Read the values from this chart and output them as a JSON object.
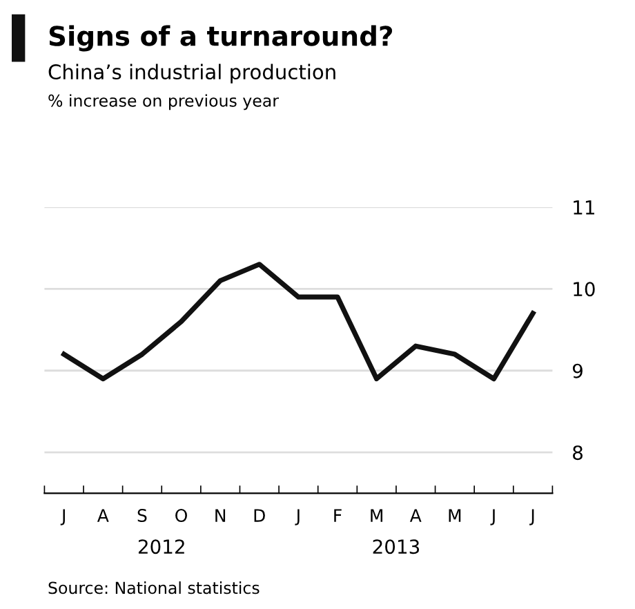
{
  "chart_data": {
    "type": "line",
    "title": "Signs of a turnaround?",
    "subtitle": "China’s industrial production",
    "categories": [
      "J",
      "A",
      "S",
      "O",
      "N",
      "D",
      "J",
      "F",
      "M",
      "A",
      "M",
      "J",
      "J"
    ],
    "series": [
      {
        "color": "#111111",
        "values": [
          9.2,
          8.9,
          9.2,
          9.6,
          10.1,
          10.3,
          9.9,
          9.9,
          8.9,
          9.3,
          9.2,
          8.9,
          9.7
        ]
      }
    ],
    "ylim": [
      7.5,
      11
    ],
    "yticks": [
      8,
      9,
      10,
      11
    ],
    "grid": "y",
    "legend": false,
    "marker": "none",
    "line_style": "solid",
    "annotations": [
      "% increase on previous year",
      "2012",
      "2013",
      "Source: National statistics"
    ]
  }
}
